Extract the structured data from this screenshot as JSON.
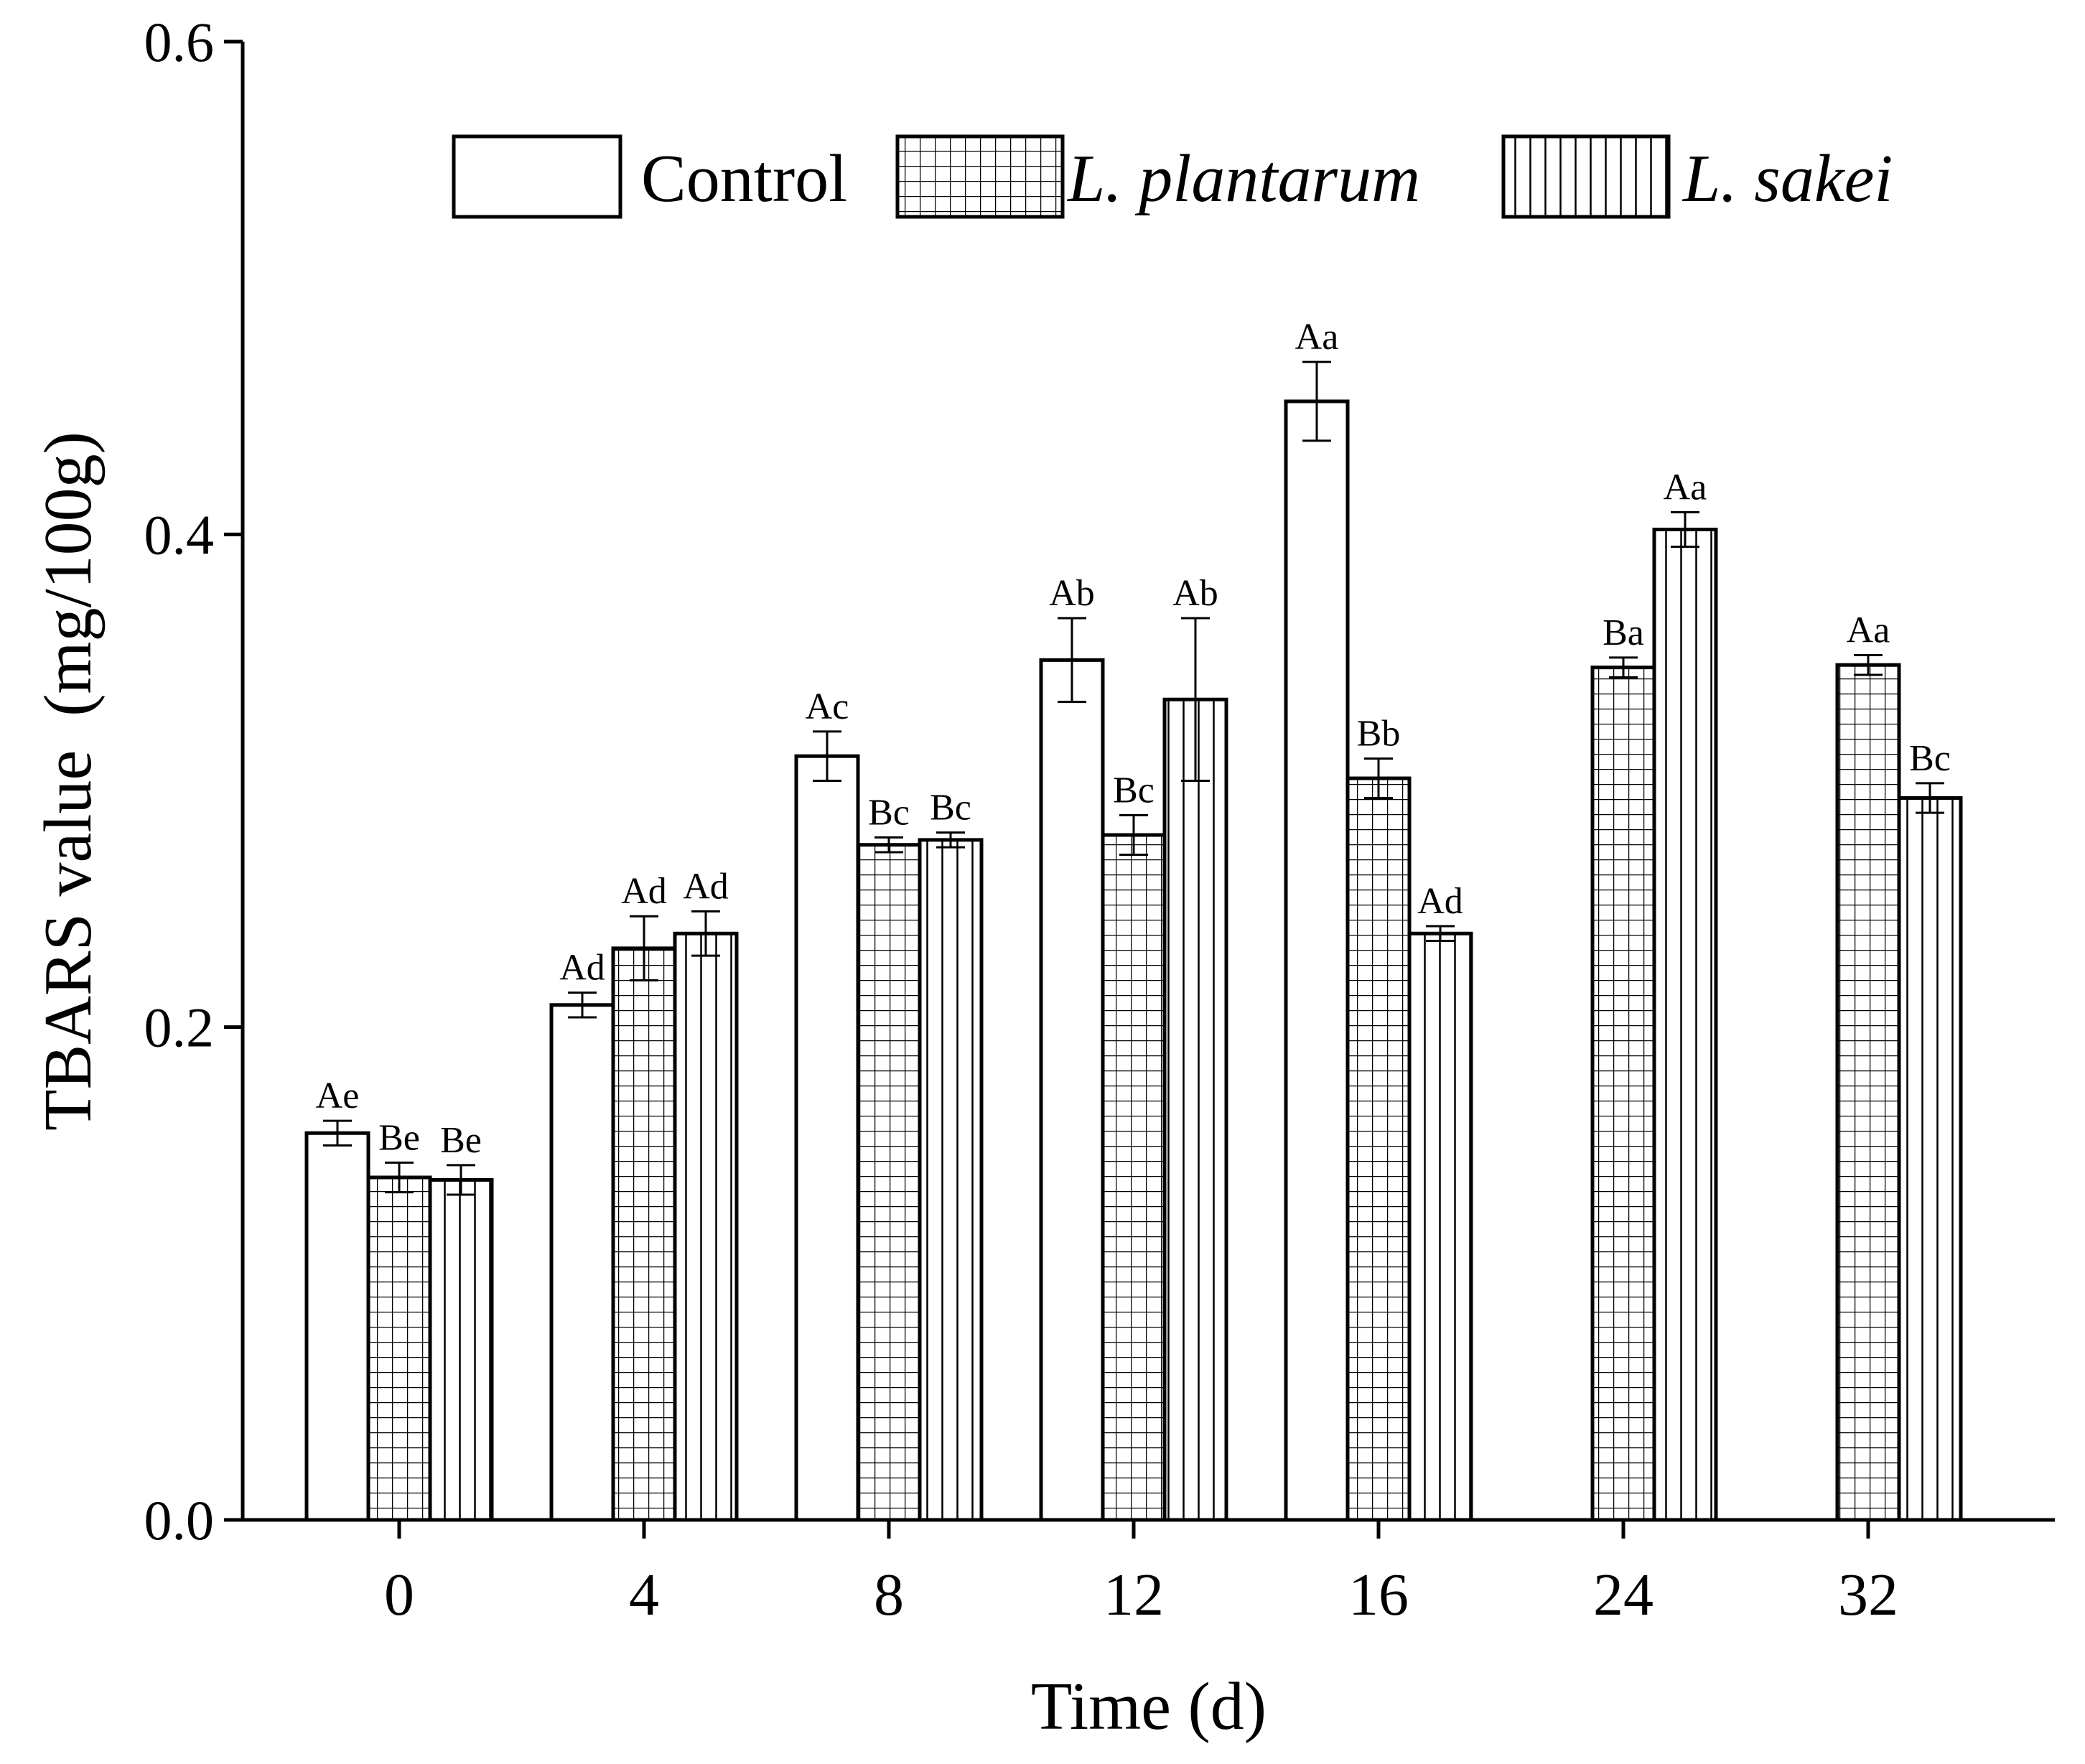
{
  "chart_data": {
    "type": "bar",
    "xlabel": "Time (d)",
    "ylabel": "TBARS value  (mg/100g)",
    "ylim": [
      0.0,
      0.6
    ],
    "yticks": [
      "0.0",
      "0.2",
      "0.4",
      "0.6"
    ],
    "categories": [
      "0",
      "4",
      "8",
      "12",
      "16",
      "24",
      "32"
    ],
    "legend_position": "top",
    "series": [
      {
        "name": "Control",
        "italic": false,
        "pattern": "none",
        "values": [
          0.157,
          0.209,
          0.31,
          0.349,
          0.454,
          null,
          null
        ],
        "errors": [
          0.005,
          0.005,
          0.01,
          0.017,
          0.016,
          null,
          null
        ],
        "labels": [
          "Ae",
          "Ad",
          "Ac",
          "Ab",
          "Aa",
          null,
          null
        ]
      },
      {
        "name": "L. plantarum",
        "italic": true,
        "pattern": "grid",
        "values": [
          0.139,
          0.232,
          0.274,
          0.278,
          0.301,
          0.346,
          0.347
        ],
        "errors": [
          0.006,
          0.013,
          0.003,
          0.008,
          0.008,
          0.004,
          0.004
        ],
        "labels": [
          "Be",
          "Ad",
          "Bc",
          "Bc",
          "Bb",
          "Ba",
          "Aa"
        ]
      },
      {
        "name": "L. sakei",
        "italic": true,
        "pattern": "vertical",
        "values": [
          0.138,
          0.238,
          0.276,
          0.333,
          0.238,
          0.402,
          0.293
        ],
        "errors": [
          0.006,
          0.009,
          0.003,
          0.033,
          0.003,
          0.007,
          0.006
        ],
        "labels": [
          "Be",
          "Ad",
          "Bc",
          "Ab",
          "Ad",
          "Aa",
          "Bc"
        ]
      }
    ]
  }
}
